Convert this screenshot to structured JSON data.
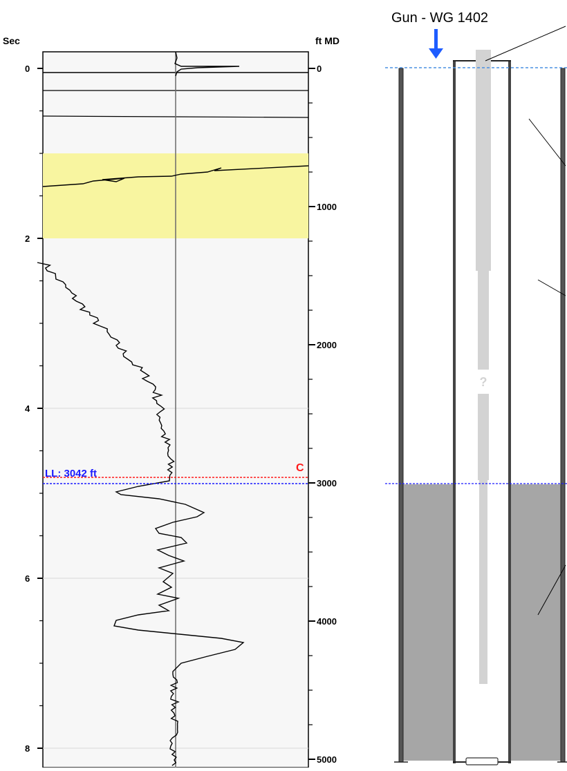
{
  "left_axis_title": "Sec",
  "right_axis_title": "ft MD",
  "left_ticks": [
    {
      "value": 0,
      "label": "0"
    },
    {
      "value": 2,
      "label": "2"
    },
    {
      "value": 4,
      "label": "4"
    },
    {
      "value": 6,
      "label": "6"
    },
    {
      "value": 8,
      "label": "8"
    }
  ],
  "right_ticks": [
    {
      "value": 0,
      "label": "0"
    },
    {
      "value": 1000,
      "label": "1000"
    },
    {
      "value": 2000,
      "label": "2000"
    },
    {
      "value": 3000,
      "label": "3000"
    },
    {
      "value": 4000,
      "label": "4000"
    },
    {
      "value": 5000,
      "label": "5000"
    }
  ],
  "highlight_band": {
    "from_sec": 1.0,
    "to_sec": 2.0,
    "color": "#f8f5a0"
  },
  "liquid_level": {
    "label": "LL: 3042 ft",
    "depth_ft": 3042,
    "color": "#1a1aff"
  },
  "collar_marker": {
    "label": "C",
    "color": "#ff1a1a"
  },
  "gun_label": "Gun - WG 1402",
  "arrow_color": "#1e5cff",
  "unknown_label": "?",
  "fluid_color": "#a6a6a6",
  "trace_color": "#000000"
}
